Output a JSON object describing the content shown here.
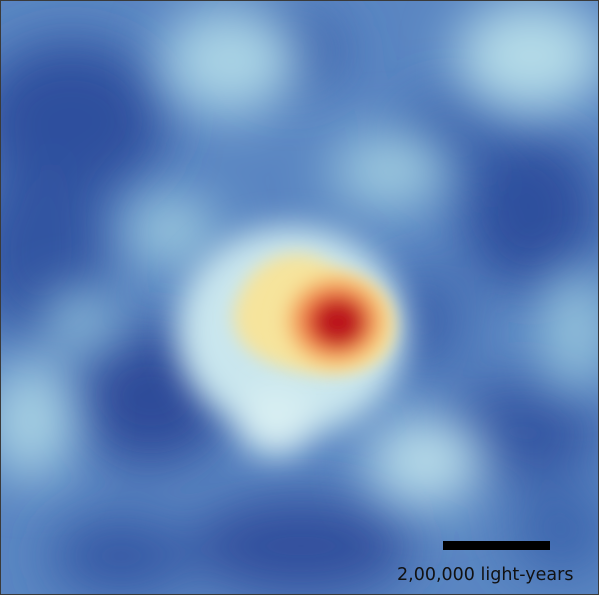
{
  "image": {
    "subject": "heat-map",
    "colors": {
      "low": "#2f4e9c",
      "mid": "#b9dde8",
      "high": "#f4e59a",
      "peak": "#c61420",
      "border": "#3a3a3a"
    }
  },
  "scale_bar": {
    "label": "2,00,000 light-years"
  }
}
